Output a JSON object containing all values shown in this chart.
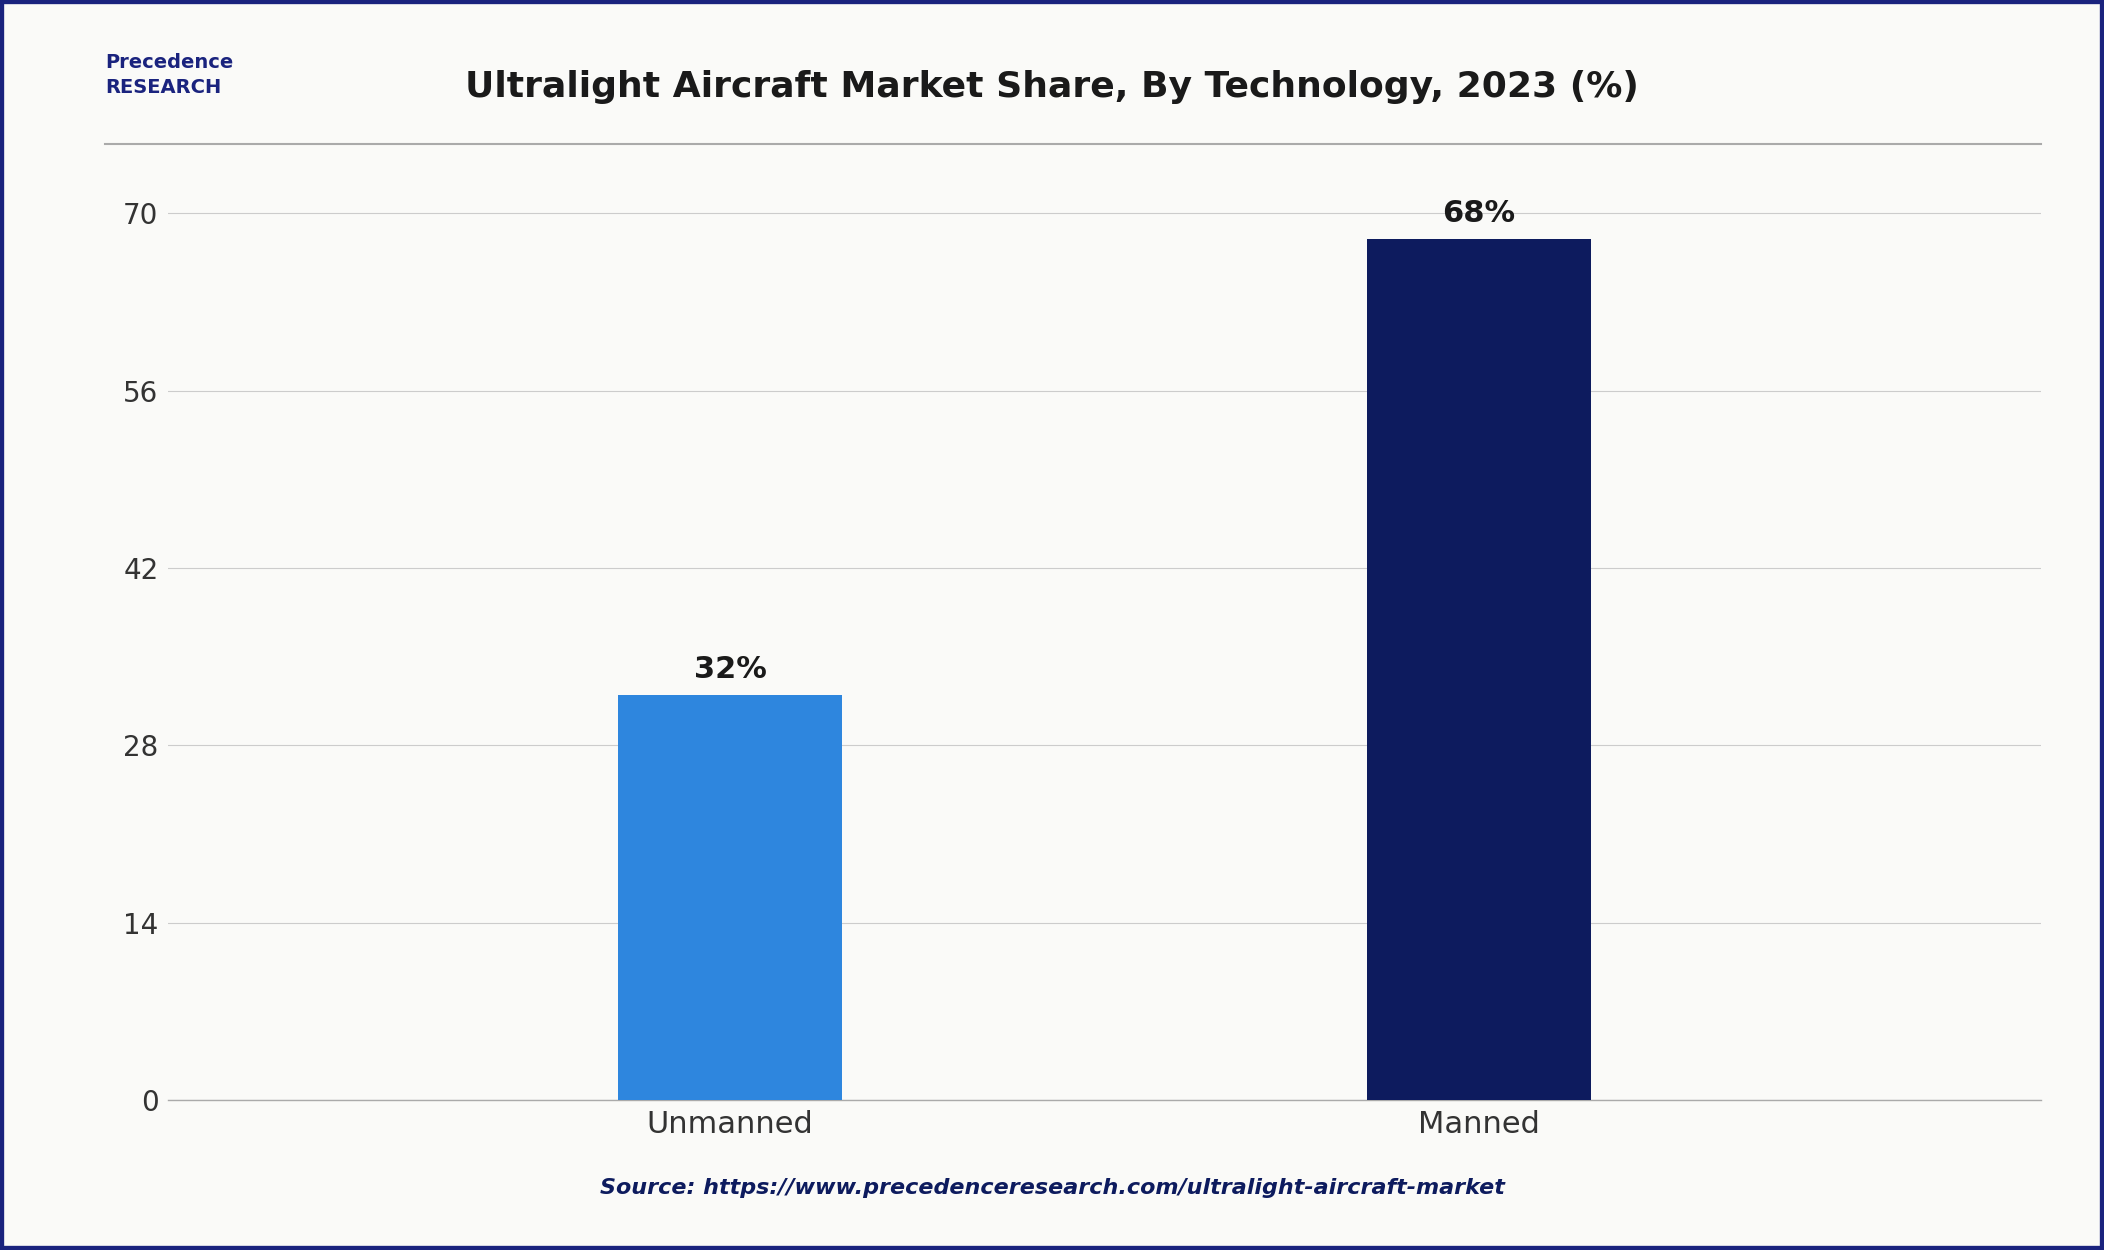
{
  "title": "Ultralight Aircraft Market Share, By Technology, 2023 (%)",
  "categories": [
    "Unmanned",
    "Manned"
  ],
  "values": [
    32,
    68
  ],
  "labels": [
    "32%",
    "68%"
  ],
  "bar_colors": [
    "#2E86DE",
    "#0D1B5E"
  ],
  "yticks": [
    0,
    14,
    28,
    42,
    56,
    70
  ],
  "ylim": [
    0,
    74
  ],
  "source_text": "Source: https://www.precedenceresearch.com/ultralight-aircraft-market",
  "background_color": "#FAFAF8",
  "border_color": "#1A237E",
  "title_color": "#1a1a1a",
  "grid_color": "#cccccc",
  "label_color": "#1a1a1a",
  "source_color": "#0D1B5E",
  "tick_label_color": "#333333"
}
